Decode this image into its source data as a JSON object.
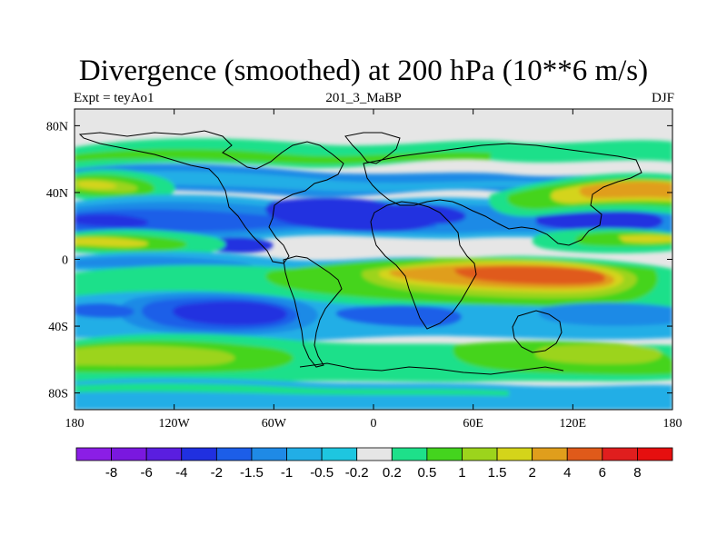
{
  "title": "Divergence (smoothed) at 200 hPa (10**6 m/s)",
  "subtitle_left": "Expt = teyAo1",
  "subtitle_center": "201_3_MaBP",
  "subtitle_right": "DJF",
  "chart_data": {
    "type": "heatmap",
    "projection": "cylindrical-equidistant",
    "xlim": [
      -180,
      180
    ],
    "ylim": [
      -90,
      90
    ],
    "x_ticks": [
      {
        "value": -180,
        "label": "180"
      },
      {
        "value": -120,
        "label": "120W"
      },
      {
        "value": -60,
        "label": "60W"
      },
      {
        "value": 0,
        "label": "0"
      },
      {
        "value": 60,
        "label": "60E"
      },
      {
        "value": 120,
        "label": "120E"
      },
      {
        "value": 180,
        "label": "180"
      }
    ],
    "y_ticks": [
      {
        "value": 80,
        "label": "80N"
      },
      {
        "value": 40,
        "label": "40N"
      },
      {
        "value": 0,
        "label": "0"
      },
      {
        "value": -40,
        "label": "40S"
      },
      {
        "value": -80,
        "label": "80S"
      }
    ],
    "colorbar": {
      "labels": [
        "-8",
        "-6",
        "-4",
        "-2",
        "-1.5",
        "-1",
        "-0.5",
        "-0.2",
        "0.2",
        "0.5",
        "1",
        "1.5",
        "2",
        "4",
        "6",
        "8"
      ],
      "colors": [
        "#8b1ee6",
        "#7a18df",
        "#5a1ee0",
        "#2030e0",
        "#1c5ee8",
        "#1f8ae6",
        "#22aee6",
        "#1ec6e0",
        "#e6e6e6",
        "#1ee08a",
        "#44d41e",
        "#9cd41c",
        "#d4d41a",
        "#e09e1c",
        "#e05a1a",
        "#e01e1e",
        "#e60f0f"
      ]
    },
    "bands": [
      {
        "lat": 72,
        "lon_start": -180,
        "lon_end": 180,
        "value": 1
      },
      {
        "lat": 62,
        "lon_start": -180,
        "lon_end": 180,
        "value": -1
      },
      {
        "lat": 46,
        "lon_start": -180,
        "lon_end": -120,
        "value": 2
      },
      {
        "lat": 24,
        "lon_start": -180,
        "lon_end": -20,
        "value": -2
      },
      {
        "lat": 8,
        "lon_start": -180,
        "lon_end": 0,
        "value": 1
      },
      {
        "lat": -16,
        "lon_start": 0,
        "lon_end": 180,
        "value": 2
      },
      {
        "lat": -34,
        "lon_start": -150,
        "lon_end": -40,
        "value": -2
      },
      {
        "lat": -58,
        "lon_start": -180,
        "lon_end": -30,
        "value": 1
      }
    ]
  }
}
